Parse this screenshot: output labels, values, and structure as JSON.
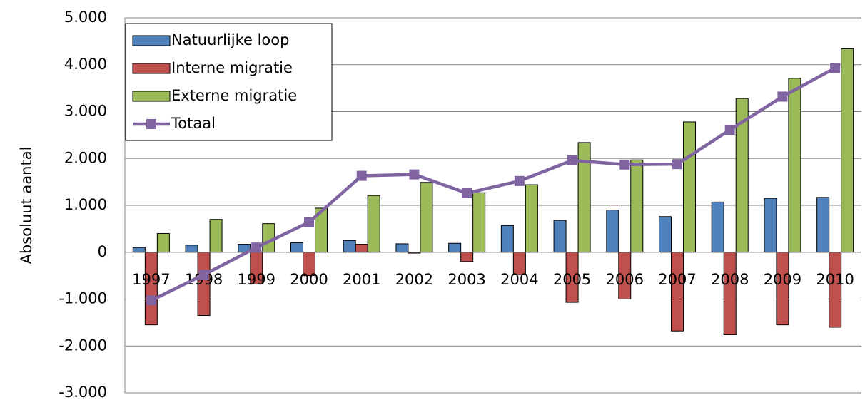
{
  "chart_data": {
    "type": "bar_line",
    "y_axis_label": "Absoluut aantal",
    "categories": [
      "1997",
      "1998",
      "1999",
      "2000",
      "2001",
      "2002",
      "2003",
      "2004",
      "2005",
      "2006",
      "2007",
      "2008",
      "2009",
      "2010"
    ],
    "series": [
      {
        "name": "Natuurlijke loop",
        "type": "bar",
        "color": "#4f81bd",
        "values": [
          100,
          150,
          170,
          200,
          250,
          180,
          190,
          570,
          680,
          900,
          760,
          1070,
          1150,
          1170
        ]
      },
      {
        "name": "Interne migratie",
        "type": "bar",
        "color": "#c0504d",
        "values": [
          -1550,
          -1350,
          -680,
          -500,
          170,
          -20,
          -200,
          -480,
          -1070,
          -1000,
          -1680,
          -1760,
          -1550,
          -1600
        ]
      },
      {
        "name": "Externe migratie",
        "type": "bar",
        "color": "#9bbb59",
        "values": [
          400,
          700,
          610,
          940,
          1210,
          1490,
          1270,
          1440,
          2340,
          1970,
          2780,
          3280,
          3710,
          4340
        ]
      },
      {
        "name": "Totaal",
        "type": "line",
        "color": "#8064a2",
        "values": [
          -1030,
          -480,
          100,
          640,
          1630,
          1660,
          1260,
          1520,
          1960,
          1870,
          1880,
          2610,
          3320,
          3930
        ]
      }
    ],
    "ylim": [
      -3000,
      5000
    ],
    "yticks": [
      {
        "value": -3000,
        "label": "-3.000"
      },
      {
        "value": -2000,
        "label": "-2.000"
      },
      {
        "value": -1000,
        "label": "-1.000"
      },
      0,
      {
        "value": 1000,
        "label": "1.000"
      },
      {
        "value": 2000,
        "label": "2.000"
      },
      {
        "value": 3000,
        "label": "3.000"
      },
      {
        "value": 4000,
        "label": "4.000"
      },
      {
        "value": 5000,
        "label": "5.000"
      }
    ],
    "grid": true,
    "legend": "top-left"
  }
}
